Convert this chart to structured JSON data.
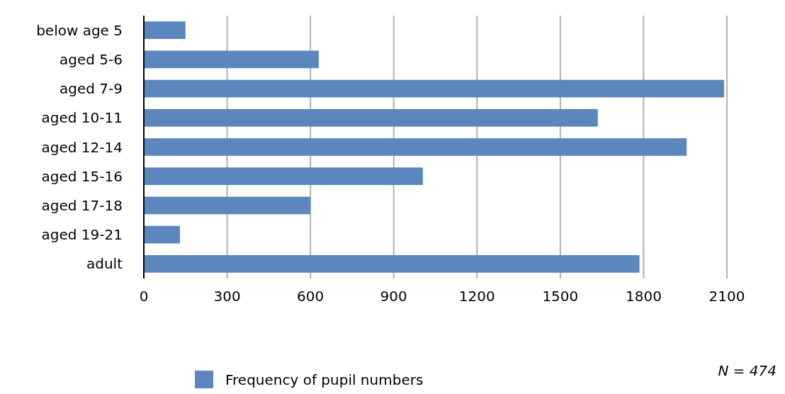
{
  "chart_data": {
    "type": "bar",
    "orientation": "horizontal",
    "categories": [
      "below age 5",
      "aged 5-6",
      "aged 7-9",
      "aged 10-11",
      "aged 12-14",
      "aged 15-16",
      "aged 17-18",
      "aged 19-21",
      "adult"
    ],
    "series": [
      {
        "name": "Frequency of pupil numbers",
        "color": "#5b87be",
        "values": [
          150,
          630,
          2090,
          1635,
          1955,
          1005,
          600,
          130,
          1785
        ]
      }
    ],
    "xlim": [
      0,
      2100
    ],
    "xticks": [
      0,
      300,
      600,
      900,
      1200,
      1500,
      1800,
      2100
    ],
    "grid": "x",
    "legend": "bottom",
    "annotations": [
      "N = 474"
    ]
  }
}
